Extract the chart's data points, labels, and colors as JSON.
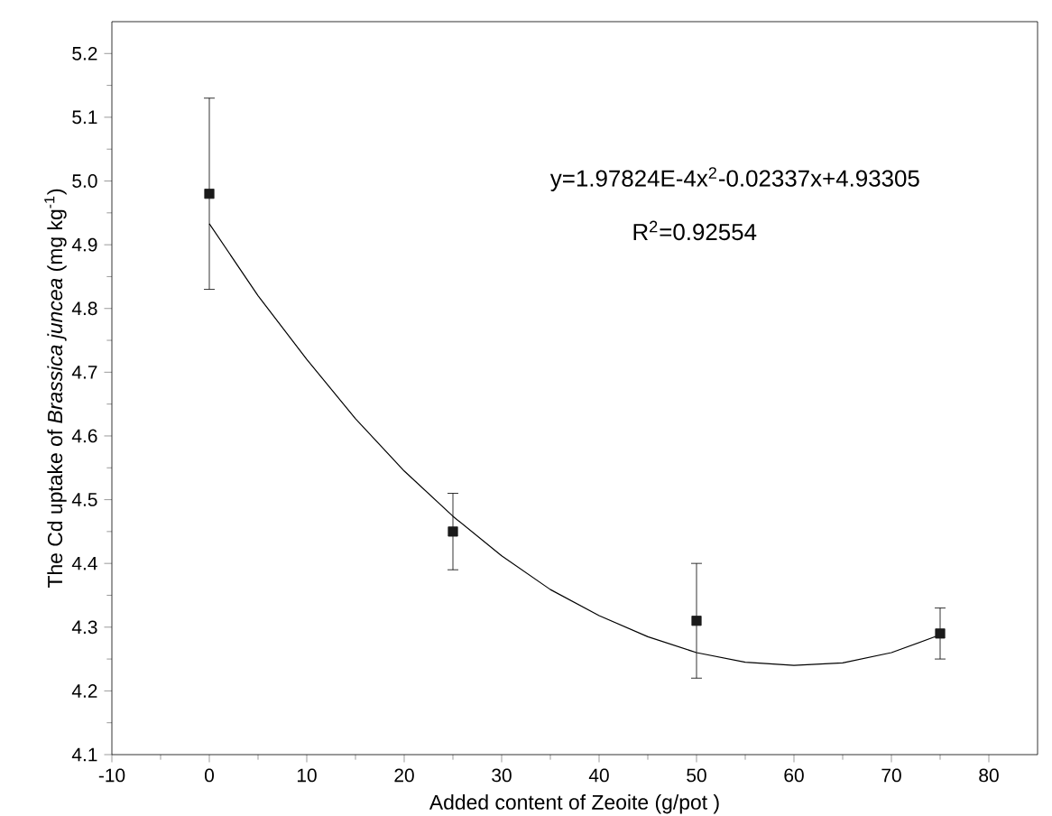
{
  "chart_data": {
    "type": "scatter",
    "xlabel": "Added content of Zeoite (g/pot )",
    "ylabel": "The Cd uptake of *Brassica juncea* (mg kg$^{-1}$)",
    "xlim": [
      -10,
      85
    ],
    "ylim": [
      4.1,
      5.25
    ],
    "xticks": [
      -10,
      0,
      10,
      20,
      30,
      40,
      50,
      60,
      70,
      80
    ],
    "yticks": [
      {
        "value": 4.1,
        "label": "4.1"
      },
      {
        "value": 4.2,
        "label": "4.2"
      },
      {
        "value": 4.3,
        "label": "4.3"
      },
      {
        "value": 4.4,
        "label": "4.4"
      },
      {
        "value": 4.5,
        "label": "4.5"
      },
      {
        "value": 4.6,
        "label": "4.6"
      },
      {
        "value": 4.7,
        "label": "4.7"
      },
      {
        "value": 4.8,
        "label": "4.8"
      },
      {
        "value": 4.9,
        "label": "4.9"
      },
      {
        "value": 5.0,
        "label": "5.0"
      },
      {
        "value": 5.1,
        "label": "5.1"
      },
      {
        "value": 5.2,
        "label": "5.2"
      }
    ],
    "grid": false,
    "series": [
      {
        "marker": "square",
        "color": "#1a1a1a",
        "x": [
          0,
          25,
          50,
          75
        ],
        "values": [
          4.98,
          4.45,
          4.31,
          4.29
        ],
        "errors": [
          0.15,
          0.06,
          0.09,
          0.04
        ]
      },
      {
        "type": "line",
        "marker": "none",
        "color": "#000000",
        "x": [
          0,
          5,
          10,
          15,
          20,
          25,
          30,
          35,
          40,
          45,
          50,
          55,
          60,
          65,
          70,
          75
        ],
        "values": [
          4.933,
          4.82,
          4.72,
          4.627,
          4.545,
          4.474,
          4.412,
          4.359,
          4.318,
          4.285,
          4.26,
          4.245,
          4.24,
          4.244,
          4.26,
          4.288
        ]
      }
    ],
    "annotations": [
      "y=1.97824E-4x$^{2}$-0.02337x+4.93305",
      "R$^{2}$=0.92554"
    ]
  }
}
